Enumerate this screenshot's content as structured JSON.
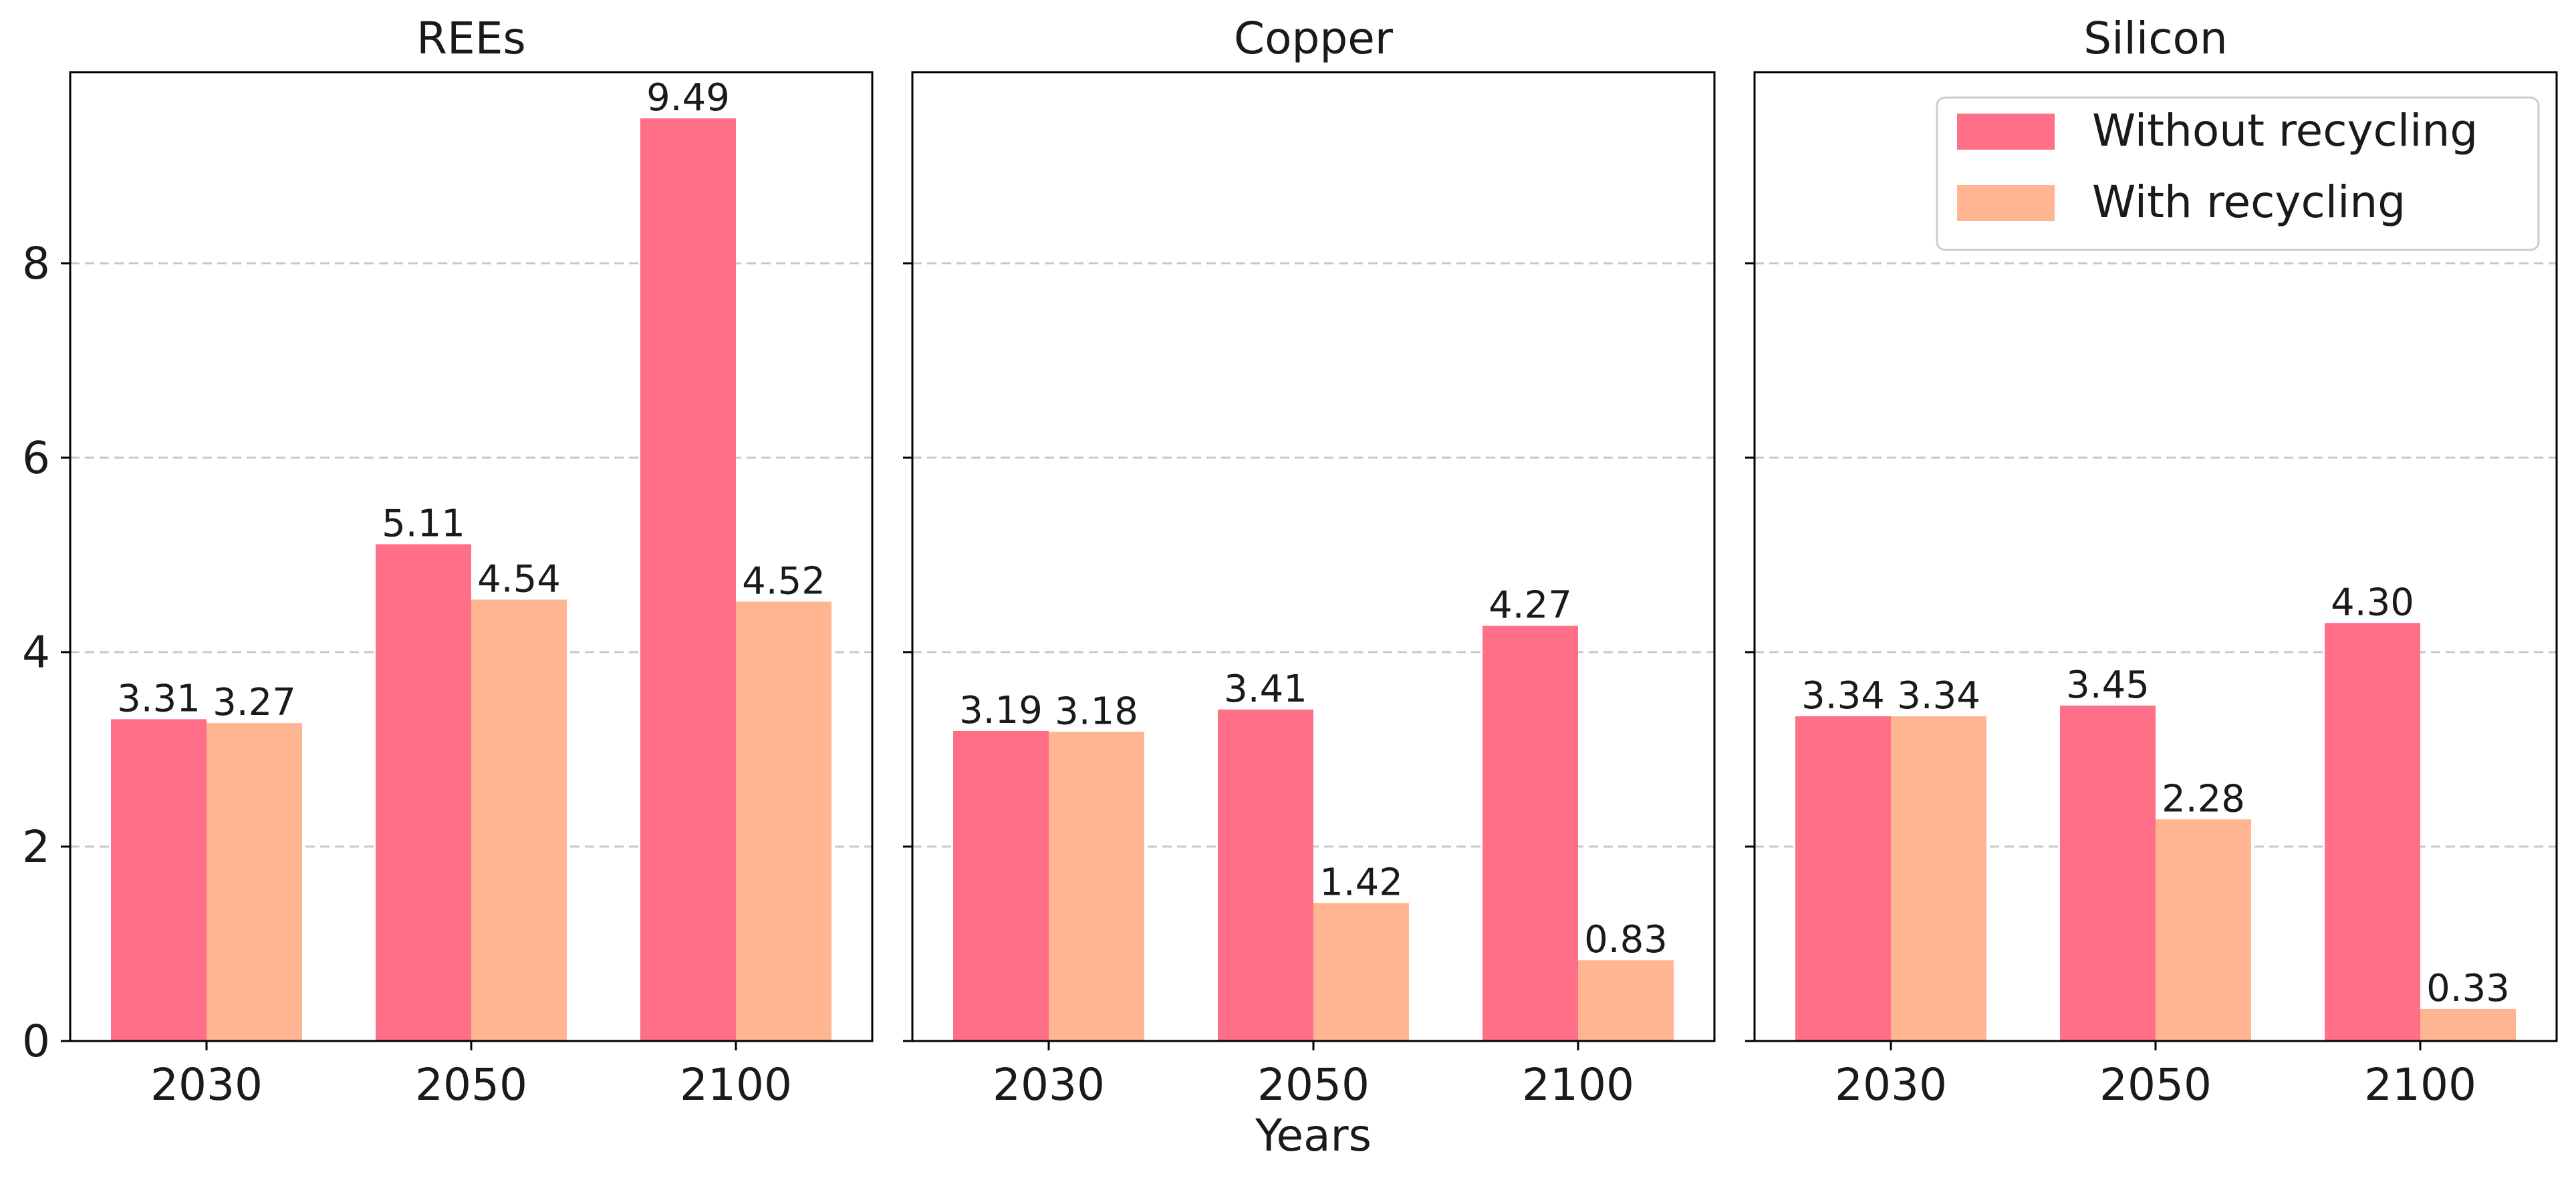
{
  "chart_data": {
    "type": "bar",
    "xlabel": "Years",
    "ylabel": "",
    "ylim": [
      0,
      10
    ],
    "yticks": [
      0,
      2,
      4,
      6,
      8
    ],
    "grid": "y-dashed",
    "legend_placement": "top-right",
    "categories": [
      "2030",
      "2050",
      "2100"
    ],
    "colors": {
      "Without recycling": "#ff6f87",
      "With recycling": "#ffb592"
    },
    "panels": [
      {
        "title": "REEs",
        "series": [
          {
            "name": "Without recycling",
            "values": [
              3.31,
              5.11,
              9.49
            ],
            "labels": [
              "3.31",
              "5.11",
              "9.49"
            ]
          },
          {
            "name": "With recycling",
            "values": [
              3.27,
              4.54,
              4.52
            ],
            "labels": [
              "3.27",
              "4.54",
              "4.52"
            ]
          }
        ]
      },
      {
        "title": "Copper",
        "series": [
          {
            "name": "Without recycling",
            "values": [
              3.19,
              3.41,
              4.27
            ],
            "labels": [
              "3.19",
              "3.41",
              "4.27"
            ]
          },
          {
            "name": "With recycling",
            "values": [
              3.18,
              1.42,
              0.83
            ],
            "labels": [
              "3.18",
              "1.42",
              "0.83"
            ]
          }
        ]
      },
      {
        "title": "Silicon",
        "series": [
          {
            "name": "Without recycling",
            "values": [
              3.34,
              3.45,
              4.3
            ],
            "labels": [
              "3.34",
              "3.45",
              "4.30"
            ]
          },
          {
            "name": "With recycling",
            "values": [
              3.34,
              2.28,
              0.33
            ],
            "labels": [
              "3.34",
              "2.28",
              "0.33"
            ]
          }
        ]
      }
    ],
    "legend": [
      "Without recycling",
      "With recycling"
    ]
  }
}
